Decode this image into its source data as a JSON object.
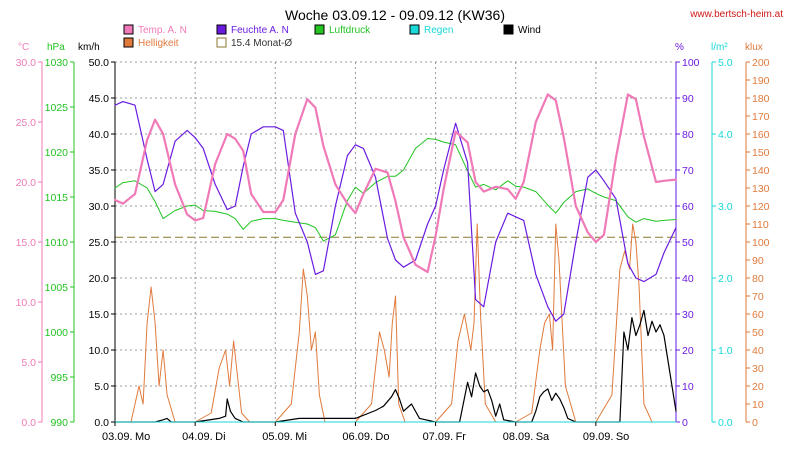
{
  "chart_data": {
    "type": "line",
    "title": "Woche 03.09.12 - 09.09.12 (KW36)",
    "source_label": "www.bertsch-heim.at",
    "colors": {
      "temp": "#f07ab8",
      "hum": "#6a1be0",
      "press": "#22c322",
      "rain": "#18d8d8",
      "wind": "#000000",
      "light": "#e07a3c",
      "avg": "#8a7a2a"
    },
    "legend": [
      {
        "key": "temp",
        "label": "Temp. A. N"
      },
      {
        "key": "hum",
        "label": "Feuchte A. N"
      },
      {
        "key": "press",
        "label": "Luftdruck"
      },
      {
        "key": "rain",
        "label": "Regen"
      },
      {
        "key": "wind",
        "label": "Wind"
      },
      {
        "key": "light",
        "label": "Helligkeit"
      },
      {
        "key": "avg",
        "label": "15.4 Monat-Ø"
      }
    ],
    "axes": {
      "temp": {
        "unit": "°C",
        "range": [
          0,
          30
        ],
        "ticks": [
          "0.0",
          "5.0",
          "10.0",
          "15.0",
          "20.0",
          "25.0",
          "30.0"
        ]
      },
      "press": {
        "unit": "hPa",
        "range": [
          990,
          1030
        ],
        "ticks": [
          "990",
          "995",
          "1000",
          "1005",
          "1010",
          "1015",
          "1020",
          "1025",
          "1030"
        ]
      },
      "wind": {
        "unit": "km/h",
        "range": [
          0,
          50
        ],
        "ticks": [
          "0.0",
          "5.0",
          "10.0",
          "15.0",
          "20.0",
          "25.0",
          "30.0",
          "35.0",
          "40.0",
          "45.0",
          "50.0"
        ]
      },
      "hum": {
        "unit": "%",
        "range": [
          0,
          100
        ],
        "ticks": [
          "0",
          "10",
          "20",
          "30",
          "40",
          "50",
          "60",
          "70",
          "80",
          "90",
          "100"
        ]
      },
      "rain": {
        "unit": "l/m²",
        "range": [
          0,
          5
        ],
        "ticks": [
          "0.0",
          "1.0",
          "2.0",
          "3.0",
          "4.0",
          "5.0"
        ]
      },
      "light": {
        "unit": "klux",
        "range": [
          0,
          200
        ],
        "ticks": [
          "0",
          "10",
          "20",
          "30",
          "40",
          "50",
          "60",
          "70",
          "80",
          "90",
          "100",
          "110",
          "120",
          "130",
          "140",
          "150",
          "160",
          "170",
          "180",
          "190",
          "200"
        ]
      }
    },
    "x_range_days": [
      0,
      7
    ],
    "x_ticks": [
      {
        "day": 0,
        "label": "03.09.",
        "wd": "Mo"
      },
      {
        "day": 1,
        "label": "04.09.",
        "wd": "Di"
      },
      {
        "day": 2,
        "label": "05.09.",
        "wd": "Mi"
      },
      {
        "day": 3,
        "label": "06.09.",
        "wd": "Do"
      },
      {
        "day": 4,
        "label": "07.09.",
        "wd": "Fr"
      },
      {
        "day": 5,
        "label": "08.09.",
        "wd": "Sa"
      },
      {
        "day": 6,
        "label": "09.09.",
        "wd": "So"
      }
    ],
    "monthly_avg_temp": 15.4,
    "series": [
      {
        "key": "temp",
        "name": "Temp. A. N",
        "axis": "temp",
        "x": [
          0,
          0.1,
          0.25,
          0.4,
          0.5,
          0.6,
          0.75,
          0.9,
          1.0,
          1.1,
          1.25,
          1.4,
          1.5,
          1.6,
          1.7,
          1.85,
          2.0,
          2.1,
          2.25,
          2.4,
          2.5,
          2.6,
          2.75,
          2.9,
          3.0,
          3.1,
          3.25,
          3.4,
          3.5,
          3.6,
          3.75,
          3.9,
          4.0,
          4.1,
          4.25,
          4.4,
          4.5,
          4.6,
          4.75,
          4.9,
          5.0,
          5.1,
          5.25,
          5.4,
          5.5,
          5.6,
          5.75,
          5.9,
          6.0,
          6.1,
          6.25,
          6.4,
          6.5,
          6.6,
          6.75,
          6.85,
          7.0
        ],
        "values": [
          18.5,
          18.2,
          19.0,
          23.5,
          25.2,
          24.0,
          19.8,
          17.3,
          16.8,
          17.0,
          21.5,
          24.0,
          23.6,
          22.6,
          19.0,
          17.5,
          17.5,
          18.5,
          24.0,
          26.9,
          26.2,
          23.0,
          19.8,
          18.2,
          17.4,
          19.0,
          21.1,
          20.8,
          18.4,
          15.4,
          13.1,
          12.5,
          15.5,
          19.4,
          24.2,
          23.3,
          20.0,
          19.2,
          19.6,
          19.4,
          18.6,
          20.0,
          25.0,
          27.3,
          26.8,
          23.7,
          18.0,
          15.8,
          15.0,
          15.6,
          22.0,
          27.3,
          26.9,
          23.8,
          20.0,
          20.1,
          20.2
        ]
      },
      {
        "key": "hum",
        "name": "Feuchte A. N",
        "axis": "hum",
        "x": [
          0,
          0.1,
          0.25,
          0.4,
          0.5,
          0.6,
          0.75,
          0.9,
          1.0,
          1.1,
          1.25,
          1.4,
          1.5,
          1.6,
          1.7,
          1.85,
          2.0,
          2.1,
          2.25,
          2.4,
          2.5,
          2.6,
          2.75,
          2.9,
          3.0,
          3.1,
          3.25,
          3.4,
          3.5,
          3.6,
          3.75,
          3.9,
          4.0,
          4.1,
          4.25,
          4.4,
          4.5,
          4.6,
          4.75,
          4.9,
          5.0,
          5.1,
          5.25,
          5.4,
          5.5,
          5.6,
          5.75,
          5.9,
          6.0,
          6.1,
          6.25,
          6.4,
          6.5,
          6.6,
          6.75,
          6.85,
          7.0
        ],
        "values": [
          88,
          89,
          88,
          73,
          64,
          66,
          78,
          81,
          79,
          76,
          66,
          59,
          60,
          71,
          80,
          82,
          82,
          81,
          58,
          50,
          41,
          42,
          60,
          74,
          77,
          76,
          68,
          51,
          45,
          43,
          45,
          55,
          60,
          70,
          83,
          72,
          34,
          32,
          50,
          58,
          57,
          56,
          41,
          32,
          28,
          30,
          50,
          68,
          70,
          67,
          62,
          44,
          40,
          39,
          41,
          47,
          54
        ]
      },
      {
        "key": "press",
        "name": "Luftdruck",
        "axis": "press",
        "x": [
          0,
          0.1,
          0.25,
          0.4,
          0.5,
          0.6,
          0.75,
          0.9,
          1.0,
          1.1,
          1.25,
          1.4,
          1.5,
          1.6,
          1.7,
          1.85,
          2.0,
          2.1,
          2.25,
          2.4,
          2.5,
          2.6,
          2.75,
          2.9,
          3.0,
          3.1,
          3.25,
          3.4,
          3.5,
          3.6,
          3.75,
          3.9,
          4.0,
          4.1,
          4.25,
          4.4,
          4.5,
          4.6,
          4.75,
          4.9,
          5.0,
          5.1,
          5.25,
          5.4,
          5.5,
          5.6,
          5.75,
          5.9,
          6.0,
          6.1,
          6.25,
          6.4,
          6.5,
          6.6,
          6.75,
          6.85,
          7.0
        ],
        "values": [
          1016,
          1016.6,
          1016.8,
          1016.0,
          1014.5,
          1012.6,
          1013.5,
          1014.0,
          1014.1,
          1013.5,
          1013.4,
          1013.1,
          1012.6,
          1011.4,
          1012.3,
          1012.6,
          1012.6,
          1012.4,
          1012.2,
          1012.0,
          1011.6,
          1010.1,
          1010.8,
          1014.6,
          1016.1,
          1015.4,
          1016.6,
          1017.3,
          1017.3,
          1018.0,
          1020.4,
          1021.5,
          1021.4,
          1021.1,
          1020.8,
          1017.9,
          1016.1,
          1016.4,
          1015.8,
          1016.8,
          1016.2,
          1016.1,
          1015.6,
          1014.1,
          1013.2,
          1014.4,
          1015.6,
          1015.9,
          1015.4,
          1015.0,
          1014.6,
          1012.8,
          1012.2,
          1012.6,
          1012.3,
          1012.4,
          1012.5
        ]
      },
      {
        "key": "light",
        "name": "Helligkeit",
        "axis": "light",
        "x": [
          0,
          0.2,
          0.3,
          0.35,
          0.4,
          0.45,
          0.5,
          0.55,
          0.6,
          0.65,
          0.75,
          1.0,
          1.2,
          1.3,
          1.38,
          1.43,
          1.48,
          1.53,
          1.58,
          1.68,
          2.0,
          2.2,
          2.3,
          2.35,
          2.4,
          2.45,
          2.5,
          2.55,
          2.62,
          2.75,
          3.0,
          3.2,
          3.3,
          3.36,
          3.42,
          3.46,
          3.5,
          3.54,
          3.62,
          3.75,
          4.0,
          4.2,
          4.28,
          4.36,
          4.44,
          4.48,
          4.52,
          4.56,
          4.62,
          4.75,
          5.0,
          5.2,
          5.3,
          5.36,
          5.42,
          5.46,
          5.5,
          5.54,
          5.62,
          5.75,
          6.0,
          6.2,
          6.3,
          6.36,
          6.42,
          6.46,
          6.5,
          6.54,
          6.6,
          6.7,
          6.75,
          7.0
        ],
        "values": [
          0,
          0,
          20,
          10,
          55,
          75,
          55,
          20,
          40,
          15,
          0,
          0,
          5,
          30,
          40,
          20,
          45,
          25,
          5,
          0,
          0,
          10,
          50,
          85,
          70,
          40,
          50,
          15,
          0,
          0,
          0,
          10,
          50,
          40,
          25,
          55,
          70,
          10,
          0,
          0,
          0,
          10,
          45,
          60,
          40,
          55,
          110,
          60,
          10,
          0,
          0,
          5,
          40,
          55,
          60,
          40,
          110,
          90,
          20,
          0,
          0,
          15,
          85,
          95,
          85,
          110,
          100,
          75,
          10,
          0,
          0,
          0
        ]
      },
      {
        "key": "wind",
        "name": "Wind",
        "axis": "wind",
        "x": [
          0,
          0.5,
          0.6,
          0.65,
          0.7,
          1.0,
          1.3,
          1.38,
          1.4,
          1.44,
          1.48,
          1.5,
          1.6,
          2.0,
          2.3,
          3.0,
          3.25,
          3.35,
          3.45,
          3.5,
          3.55,
          3.6,
          3.7,
          3.8,
          4.0,
          4.3,
          4.4,
          4.45,
          4.5,
          4.55,
          4.6,
          4.65,
          4.7,
          4.75,
          4.8,
          4.85,
          5.0,
          5.2,
          5.25,
          5.3,
          5.35,
          5.4,
          5.45,
          5.5,
          5.55,
          5.6,
          5.65,
          5.75,
          6.0,
          6.3,
          6.35,
          6.4,
          6.45,
          6.5,
          6.55,
          6.6,
          6.65,
          6.7,
          6.75,
          6.8,
          6.85,
          7.0
        ],
        "values": [
          0,
          0,
          0.3,
          0.5,
          0,
          0,
          0.5,
          0.8,
          3.2,
          1.5,
          0.8,
          0.5,
          0,
          0,
          0.5,
          0.5,
          1.6,
          2.2,
          3.5,
          4.5,
          3.2,
          1.5,
          2.5,
          0.5,
          0,
          0,
          5.5,
          3.5,
          6.8,
          5.0,
          4.2,
          4.5,
          3.0,
          0.8,
          2.5,
          0.3,
          0,
          0,
          1.5,
          3.5,
          4.2,
          4.6,
          3.0,
          4.0,
          3.2,
          2.0,
          0.5,
          0,
          0,
          0,
          12.5,
          10.0,
          14.5,
          12.0,
          13.5,
          15.5,
          12.0,
          14.0,
          12.5,
          13.5,
          12.0,
          1.5
        ]
      },
      {
        "key": "rain",
        "name": "Regen",
        "axis": "rain",
        "x": [
          0,
          7
        ],
        "values": [
          0,
          0
        ]
      }
    ]
  }
}
